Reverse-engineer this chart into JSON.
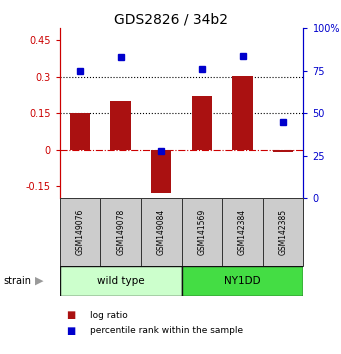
{
  "title": "GDS2826 / 34b2",
  "samples": [
    "GSM149076",
    "GSM149078",
    "GSM149084",
    "GSM141569",
    "GSM142384",
    "GSM142385"
  ],
  "log_ratios": [
    0.15,
    0.2,
    -0.18,
    0.22,
    0.305,
    -0.01
  ],
  "percentile_ranks": [
    75,
    83,
    28,
    76,
    84,
    45
  ],
  "groups": [
    {
      "label": "wild type",
      "indices": [
        0,
        1,
        2
      ],
      "color": "#ccffcc"
    },
    {
      "label": "NY1DD",
      "indices": [
        3,
        4,
        5
      ],
      "color": "#44dd44"
    }
  ],
  "ylim": [
    -0.2,
    0.5
  ],
  "yticks_left": [
    -0.15,
    0.0,
    0.15,
    0.3,
    0.45
  ],
  "yticks_right": [
    0,
    25,
    50,
    75,
    100
  ],
  "hlines": [
    0.15,
    0.3
  ],
  "left_axis_color": "#cc0000",
  "right_axis_color": "#0000cc",
  "bar_color": "#aa1111",
  "dot_color": "#0000cc",
  "zero_line_color": "#cc0000",
  "background_color": "#ffffff",
  "strain_arrow_color": "#999999"
}
